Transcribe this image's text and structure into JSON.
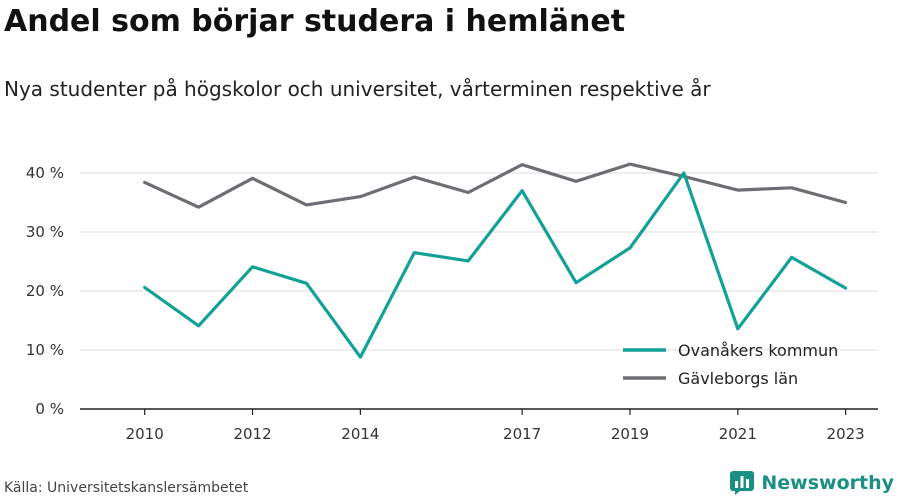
{
  "title": "Andel som börjar studera i hemlänet",
  "subtitle": "Nya studenter på högskolor och universitet, vårterminen respektive år",
  "source": "Källa: Universitetskanslersämbetet",
  "brand": {
    "name": "Newsworthy",
    "icon": "newsworthy-logo-icon",
    "color": "#1c8f84"
  },
  "chart_data": {
    "type": "line",
    "x": [
      2010,
      2011,
      2012,
      2013,
      2014,
      2015,
      2016,
      2017,
      2018,
      2019,
      2020,
      2021,
      2022,
      2023
    ],
    "x_tick_labels": [
      "2010",
      "2012",
      "2014",
      "2017",
      "2019",
      "2021",
      "2023"
    ],
    "y_tick_labels": [
      "0 %",
      "10 %",
      "20 %",
      "30 %",
      "40 %"
    ],
    "ylim": [
      0,
      40
    ],
    "grid": true,
    "legend_position": "right",
    "series": [
      {
        "name": "Ovanåkers kommun",
        "color": "#12a196",
        "values": [
          20.6,
          14.1,
          24.1,
          21.3,
          8.8,
          26.5,
          25.1,
          37.0,
          21.4,
          27.3,
          40.0,
          13.6,
          25.7,
          20.5
        ]
      },
      {
        "name": "Gävleborgs län",
        "color": "#6d6d73",
        "values": [
          38.4,
          34.2,
          39.1,
          34.6,
          36.0,
          39.3,
          36.7,
          41.4,
          38.6,
          41.5,
          39.4,
          37.1,
          37.5,
          35.0
        ]
      }
    ]
  }
}
